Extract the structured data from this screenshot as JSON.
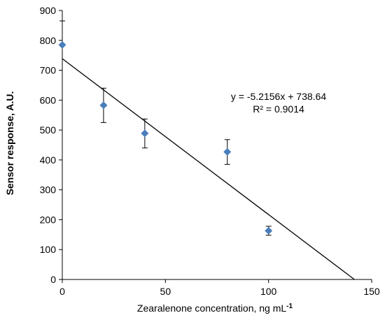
{
  "chart_data": {
    "type": "scatter",
    "title": "",
    "xlabel": "Zearalenone  concentration, ng mL",
    "xlabel_superscript": "-1",
    "ylabel": "Sensor response, A.U.",
    "xlim": [
      0,
      150
    ],
    "ylim": [
      0,
      900
    ],
    "xticks": [
      0,
      50,
      100,
      150
    ],
    "yticks": [
      0,
      100,
      200,
      300,
      400,
      500,
      600,
      700,
      800,
      900
    ],
    "grid": false,
    "marker": "diamond",
    "marker_color": "#4a7ebb",
    "points": [
      {
        "x": 0,
        "y": 785,
        "err_low": 785,
        "err_high": 865
      },
      {
        "x": 20,
        "y": 583,
        "err_low": 525,
        "err_high": 640
      },
      {
        "x": 40,
        "y": 489,
        "err_low": 440,
        "err_high": 537
      },
      {
        "x": 80,
        "y": 427,
        "err_low": 385,
        "err_high": 468
      },
      {
        "x": 100,
        "y": 163,
        "err_low": 148,
        "err_high": 178
      }
    ],
    "trendline": {
      "slope": -5.2156,
      "intercept": 738.64,
      "equation": "y = -5.2156x + 738.64",
      "r2": "R² = 0.9014"
    }
  }
}
